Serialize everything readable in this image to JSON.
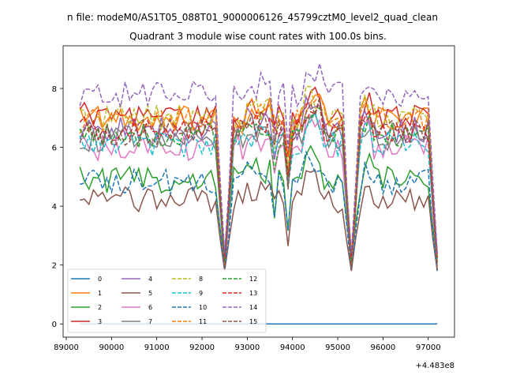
{
  "figure_title": "n file: modeM0/AS1T05_088T01_9000006126_45799cztM0_level2_quad_clean",
  "chart_data": {
    "type": "line",
    "title": "Quadrant 3 module wise count rates with 100.0s bins.",
    "xlabel": "",
    "ylabel": "",
    "offset_text": "+4.483e8",
    "x_offset": 448300000,
    "xlim": [
      88930,
      97580
    ],
    "ylim": [
      -0.45,
      9.45
    ],
    "x_ticks": [
      89000,
      90000,
      91000,
      92000,
      93000,
      94000,
      95000,
      96000,
      97000
    ],
    "x_tick_labels": [
      "89000",
      "90000",
      "91000",
      "92000",
      "93000",
      "94000",
      "95000",
      "96000",
      "97000"
    ],
    "y_ticks": [
      0,
      2,
      4,
      6,
      8
    ],
    "y_tick_labels": [
      "0",
      "2",
      "4",
      "6",
      "8"
    ],
    "grid": false,
    "legend_position": "lower left",
    "legend_columns": 4,
    "segments": [
      {
        "start": 89300,
        "end": 92400
      },
      {
        "start": 92600,
        "end": 95250
      },
      {
        "start": 95400,
        "end": 97200
      }
    ],
    "dips": [
      92500,
      95300,
      97200
    ],
    "series": [
      {
        "name": "0",
        "color": "#1f77b4",
        "dash": "solid",
        "level": 0.0
      },
      {
        "name": "1",
        "color": "#ff7f0e",
        "dash": "solid",
        "level": 7.0
      },
      {
        "name": "2",
        "color": "#2ca02c",
        "dash": "solid",
        "level": 4.9
      },
      {
        "name": "3",
        "color": "#d62728",
        "dash": "solid",
        "level": 7.1
      },
      {
        "name": "4",
        "color": "#9467bd",
        "dash": "solid",
        "level": 6.6
      },
      {
        "name": "5",
        "color": "#8c564b",
        "dash": "solid",
        "level": 4.2
      },
      {
        "name": "6",
        "color": "#e377c2",
        "dash": "solid",
        "level": 6.0
      },
      {
        "name": "7",
        "color": "#7f7f7f",
        "dash": "solid",
        "level": 6.3
      },
      {
        "name": "8",
        "color": "#bcbd22",
        "dash": "dashed",
        "level": 7.0
      },
      {
        "name": "9",
        "color": "#17becf",
        "dash": "dashed",
        "level": 6.1
      },
      {
        "name": "10",
        "color": "#1f77b4",
        "dash": "dashed",
        "level": 4.8
      },
      {
        "name": "11",
        "color": "#ff7f0e",
        "dash": "dashed",
        "level": 6.9
      },
      {
        "name": "12",
        "color": "#2ca02c",
        "dash": "dashed",
        "level": 6.4
      },
      {
        "name": "13",
        "color": "#d62728",
        "dash": "dashed",
        "level": 6.6
      },
      {
        "name": "14",
        "color": "#9467bd",
        "dash": "dashed",
        "level": 7.8
      },
      {
        "name": "15",
        "color": "#8c564b",
        "dash": "dashed",
        "level": 6.5
      }
    ]
  }
}
